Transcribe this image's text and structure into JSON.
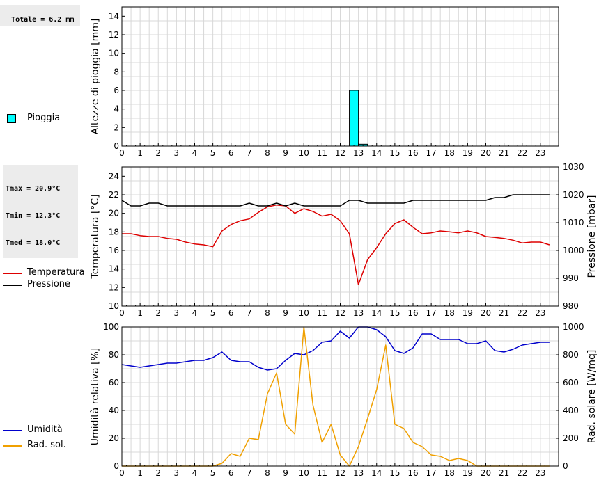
{
  "info": {
    "rain_total": "Totale = 6.2 mm",
    "temp_stats": [
      "Tmax = 20.9°C",
      "Tmin = 12.3°C",
      "Tmed = 18.0°C"
    ]
  },
  "colors": {
    "rain": "#00ffff",
    "temperature": "#dd0000",
    "pressure": "#000000",
    "humidity": "#0000cc",
    "radiation": "#f0a000",
    "grid": "#d8d8d8"
  },
  "legends": {
    "rain": "Pioggia",
    "temperature": "Temperatura",
    "pressure": "Pressione",
    "humidity": "Umidità",
    "radiation": "Rad. sol."
  },
  "chart_data": [
    {
      "type": "bar",
      "ylabel": "Altezze di pioggia [mm]",
      "ylim": [
        0,
        15
      ],
      "yticks": [
        0,
        2,
        4,
        6,
        8,
        10,
        12,
        14
      ],
      "xticks": [
        0,
        1,
        2,
        3,
        4,
        5,
        6,
        7,
        8,
        9,
        10,
        11,
        12,
        13,
        14,
        15,
        16,
        17,
        18,
        19,
        20,
        21,
        22,
        23
      ],
      "xlim": [
        0,
        24
      ],
      "grid": true,
      "series": [
        {
          "name": "Pioggia",
          "bars": [
            {
              "x": 12.5,
              "value": 6.0
            },
            {
              "x": 13.0,
              "value": 0.2
            }
          ]
        }
      ]
    },
    {
      "type": "line",
      "ylabel": "Temperatura [°C]",
      "y2label": "Pressione [mbar]",
      "ylim": [
        10,
        25
      ],
      "yticks": [
        10,
        12,
        14,
        16,
        18,
        20,
        22,
        24
      ],
      "y2lim": [
        980,
        1030
      ],
      "y2ticks": [
        980,
        990,
        1000,
        1010,
        1020,
        1030
      ],
      "xticks": [
        0,
        1,
        2,
        3,
        4,
        5,
        6,
        7,
        8,
        9,
        10,
        11,
        12,
        13,
        14,
        15,
        16,
        17,
        18,
        19,
        20,
        21,
        22,
        23
      ],
      "xlim": [
        0,
        24
      ],
      "grid": true,
      "series": [
        {
          "name": "Temperatura",
          "axis": "left",
          "x": [
            0,
            0.5,
            1,
            1.5,
            2,
            2.5,
            3,
            3.5,
            4,
            4.5,
            5,
            5.5,
            6,
            6.5,
            7,
            7.5,
            8,
            8.5,
            9,
            9.5,
            10,
            10.5,
            11,
            11.5,
            12,
            12.5,
            13,
            13.5,
            14,
            14.5,
            15,
            15.5,
            16,
            16.5,
            17,
            17.5,
            18,
            18.5,
            19,
            19.5,
            20,
            20.5,
            21,
            21.5,
            22,
            22.5,
            23,
            23.5
          ],
          "y": [
            17.8,
            17.8,
            17.6,
            17.5,
            17.5,
            17.3,
            17.2,
            16.9,
            16.7,
            16.6,
            16.4,
            18.1,
            18.8,
            19.2,
            19.4,
            20.1,
            20.7,
            20.9,
            20.8,
            20.0,
            20.5,
            20.2,
            19.7,
            19.9,
            19.2,
            17.8,
            12.3,
            15.0,
            16.3,
            17.8,
            18.9,
            19.3,
            18.5,
            17.8,
            17.9,
            18.1,
            18.0,
            17.9,
            18.1,
            17.9,
            17.5,
            17.4,
            17.3,
            17.1,
            16.8,
            16.9,
            16.9,
            16.6
          ]
        },
        {
          "name": "Pressione",
          "axis": "right",
          "x": [
            0,
            0.5,
            1,
            1.5,
            2,
            2.5,
            3,
            3.5,
            4,
            4.5,
            5,
            5.5,
            6,
            6.5,
            7,
            7.5,
            8,
            8.5,
            9,
            9.5,
            10,
            10.5,
            11,
            11.5,
            12,
            12.5,
            13,
            13.5,
            14,
            14.5,
            15,
            15.5,
            16,
            16.5,
            17,
            17.5,
            18,
            18.5,
            19,
            19.5,
            20,
            20.5,
            21,
            21.5,
            22,
            22.5,
            23,
            23.5
          ],
          "y": [
            1018,
            1016,
            1016,
            1017,
            1017,
            1016,
            1016,
            1016,
            1016,
            1016,
            1016,
            1016,
            1016,
            1016,
            1017,
            1016,
            1016,
            1017,
            1016,
            1017,
            1016,
            1016,
            1016,
            1016,
            1016,
            1018,
            1018,
            1017,
            1017,
            1017,
            1017,
            1017,
            1018,
            1018,
            1018,
            1018,
            1018,
            1018,
            1018,
            1018,
            1018,
            1019,
            1019,
            1020,
            1020,
            1020,
            1020,
            1020
          ]
        }
      ]
    },
    {
      "type": "line",
      "ylabel": "Umidità relativa [%]",
      "y2label": "Rad. solare [W/mq]",
      "ylim": [
        0,
        100
      ],
      "yticks": [
        0,
        20,
        40,
        60,
        80,
        100
      ],
      "y2lim": [
        0,
        1000
      ],
      "y2ticks": [
        0,
        200,
        400,
        600,
        800,
        1000
      ],
      "xticks": [
        0,
        1,
        2,
        3,
        4,
        5,
        6,
        7,
        8,
        9,
        10,
        11,
        12,
        13,
        14,
        15,
        16,
        17,
        18,
        19,
        20,
        21,
        22,
        23
      ],
      "xlim": [
        0,
        24
      ],
      "grid": true,
      "series": [
        {
          "name": "Umidità",
          "axis": "left",
          "x": [
            0,
            0.5,
            1,
            1.5,
            2,
            2.5,
            3,
            3.5,
            4,
            4.5,
            5,
            5.5,
            6,
            6.5,
            7,
            7.5,
            8,
            8.5,
            9,
            9.5,
            10,
            10.5,
            11,
            11.5,
            12,
            12.5,
            13,
            13.5,
            14,
            14.5,
            15,
            15.5,
            16,
            16.5,
            17,
            17.5,
            18,
            18.5,
            19,
            19.5,
            20,
            20.5,
            21,
            21.5,
            22,
            22.5,
            23,
            23.5
          ],
          "y": [
            73,
            72,
            71,
            72,
            73,
            74,
            74,
            75,
            76,
            76,
            78,
            82,
            76,
            75,
            75,
            71,
            69,
            70,
            76,
            81,
            80,
            83,
            89,
            90,
            97,
            92,
            100,
            100,
            98,
            93,
            83,
            81,
            85,
            95,
            95,
            91,
            91,
            91,
            88,
            88,
            90,
            83,
            82,
            84,
            87,
            88,
            89,
            89
          ]
        },
        {
          "name": "Rad. sol.",
          "axis": "right",
          "x": [
            0,
            0.5,
            1,
            1.5,
            2,
            2.5,
            3,
            3.5,
            4,
            4.5,
            5,
            5.5,
            6,
            6.5,
            7,
            7.5,
            8,
            8.5,
            9,
            9.5,
            10,
            10.5,
            11,
            11.5,
            12,
            12.5,
            13,
            13.5,
            14,
            14.5,
            15,
            15.5,
            16,
            16.5,
            17,
            17.5,
            18,
            18.5,
            19,
            19.5,
            20,
            20.5,
            21,
            21.5,
            22,
            22.5,
            23,
            23.5
          ],
          "y": [
            0,
            0,
            0,
            0,
            0,
            0,
            0,
            0,
            0,
            0,
            0,
            20,
            90,
            70,
            200,
            190,
            520,
            670,
            300,
            230,
            1000,
            440,
            170,
            300,
            80,
            0,
            140,
            340,
            550,
            870,
            300,
            270,
            170,
            140,
            80,
            70,
            40,
            55,
            40,
            0,
            0,
            0,
            0,
            0,
            0,
            0,
            0,
            0
          ]
        }
      ]
    }
  ]
}
